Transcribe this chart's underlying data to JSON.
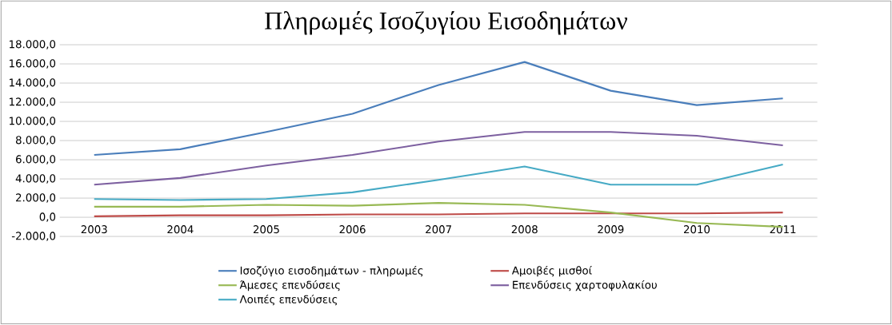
{
  "chart_data": {
    "type": "line",
    "title": "Πληρωμές Ισοζυγίου Εισοδημάτων",
    "categories": [
      "2003",
      "2004",
      "2005",
      "2006",
      "2007",
      "2008",
      "2009",
      "2010",
      "2011"
    ],
    "series": [
      {
        "name": "Ισοζύγιο εισοδημάτων - πληρωμές",
        "color": "#4a7ebb",
        "values": [
          6500,
          7100,
          8900,
          10800,
          13800,
          16200,
          13200,
          11700,
          12400
        ]
      },
      {
        "name": "Αμοιβές μισθοί",
        "color": "#be4b48",
        "values": [
          100,
          200,
          200,
          300,
          300,
          400,
          400,
          400,
          500
        ]
      },
      {
        "name": "Άμεσες επενδύσεις",
        "color": "#98b954",
        "values": [
          1100,
          1100,
          1300,
          1200,
          1500,
          1300,
          500,
          -600,
          -1000
        ]
      },
      {
        "name": "Επενδύσεις χαρτοφυλακίου",
        "color": "#7d60a0",
        "values": [
          3400,
          4100,
          5400,
          6500,
          7900,
          8900,
          8900,
          8500,
          7500
        ]
      },
      {
        "name": "Λοιπές επενδύσεις",
        "color": "#46aac5",
        "values": [
          1900,
          1800,
          1900,
          2600,
          3900,
          5300,
          3400,
          3400,
          5500
        ]
      }
    ],
    "ylim": [
      -2000,
      18000
    ],
    "yticks": [
      {
        "value": -2000,
        "label": "-2.000,0"
      },
      {
        "value": 0,
        "label": "0,0"
      },
      {
        "value": 2000,
        "label": "2.000,0"
      },
      {
        "value": 4000,
        "label": "4.000,0"
      },
      {
        "value": 6000,
        "label": "6.000,0"
      },
      {
        "value": 8000,
        "label": "8.000,0"
      },
      {
        "value": 10000,
        "label": "10.000,0"
      },
      {
        "value": 12000,
        "label": "12.000,0"
      },
      {
        "value": 14000,
        "label": "14.000,0"
      },
      {
        "value": 16000,
        "label": "16.000,0"
      },
      {
        "value": 18000,
        "label": "18.000,0"
      }
    ],
    "grid": "y",
    "legend": "bottom",
    "marker": "none",
    "line_style": "solid"
  }
}
